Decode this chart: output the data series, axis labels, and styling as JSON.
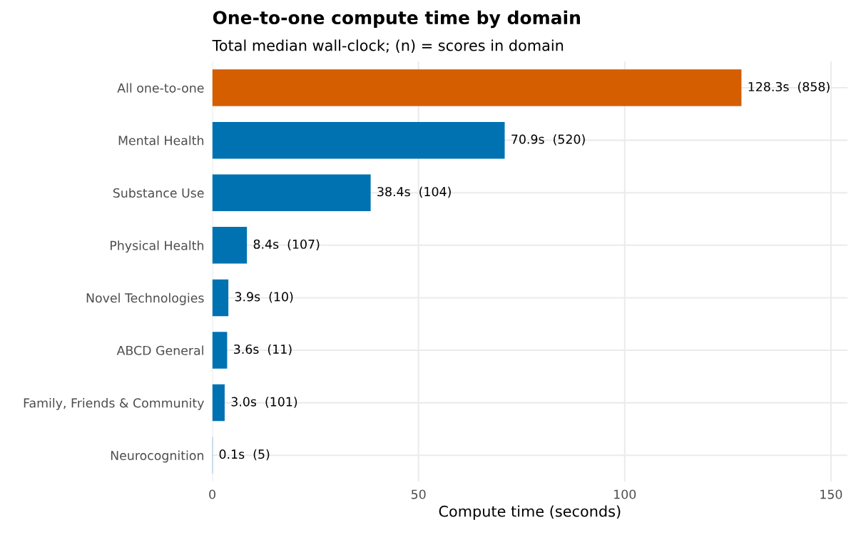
{
  "chart_data": {
    "type": "bar",
    "orientation": "horizontal",
    "title": "One-to-one compute time by domain",
    "subtitle": "Total median wall-clock; (n) = scores in domain",
    "xlabel": "Compute time (seconds)",
    "categories": [
      "All one-to-one",
      "Mental Health",
      "Substance Use",
      "Physical Health",
      "Novel Technologies",
      "ABCD General",
      "Family, Friends & Community",
      "Neurocognition"
    ],
    "values": [
      128.3,
      70.9,
      38.4,
      8.4,
      3.9,
      3.6,
      3.0,
      0.1
    ],
    "colors": [
      "#d55e00",
      "#0072b2",
      "#0072b2",
      "#0072b2",
      "#0072b2",
      "#0072b2",
      "#0072b2",
      "#0072b2"
    ],
    "value_labels": [
      "128.3s  (858)",
      "70.9s  (520)",
      "38.4s  (104)",
      "8.4s  (107)",
      "3.9s  (10)",
      "3.6s  (11)",
      "3.0s  (101)",
      "0.1s  (5)"
    ],
    "xlim": [
      0,
      154
    ],
    "xticks": [
      0,
      50,
      100,
      150
    ],
    "grid": true
  }
}
